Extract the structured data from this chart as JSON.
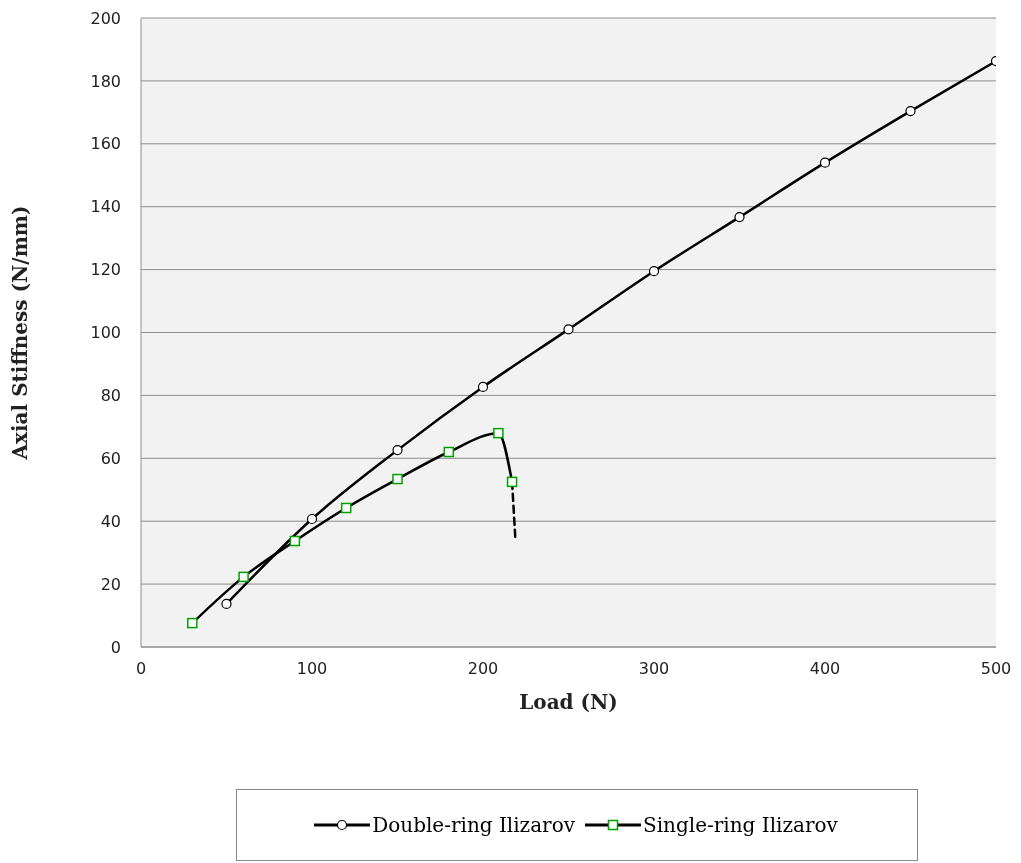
{
  "chart_data": {
    "type": "line",
    "xlabel": "Load   (N)",
    "ylabel": "Axial Stiffness  (N/mm)",
    "xlim": [
      0,
      500
    ],
    "xticks": [
      0,
      100,
      200,
      300,
      400,
      500
    ],
    "ylim": [
      0,
      200
    ],
    "yticks": [
      0,
      20,
      40,
      60,
      80,
      100,
      120,
      140,
      160,
      180,
      200
    ],
    "grid": "y",
    "legend": "bottom",
    "line_style": "solid",
    "series": [
      {
        "name": "Double-ring Ilizarov",
        "color": "#000000",
        "marker": "circle",
        "x": [
          50,
          100,
          150,
          200,
          250,
          300,
          350,
          400,
          450,
          500
        ],
        "values": [
          13.7,
          40.7,
          62.6,
          82.7,
          101,
          119.5,
          136.7,
          154,
          170.4,
          186.3
        ]
      },
      {
        "name": "Single-ring Ilizarov",
        "color": "#00a000",
        "marker": "square",
        "x": [
          30,
          60,
          90,
          120,
          150,
          180,
          209,
          217
        ],
        "values": [
          7.6,
          22.3,
          33.7,
          44.2,
          53.4,
          62,
          68,
          52.5
        ]
      },
      {
        "color": "#000000",
        "marker": "none",
        "line_style": "dashed",
        "x": [
          217,
          219
        ],
        "values": [
          52.5,
          33.7
        ]
      }
    ]
  }
}
